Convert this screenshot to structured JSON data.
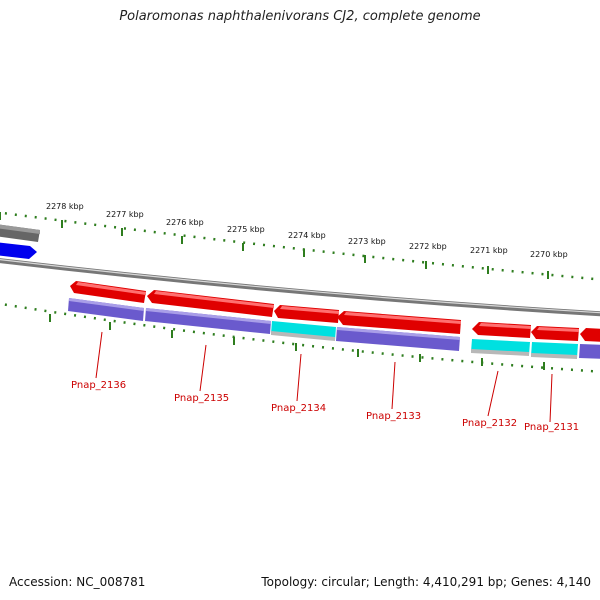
{
  "title": "Polaromonas naphthalenivorans CJ2, complete genome",
  "footer": {
    "accession": "Accession: NC_008781",
    "summary": "Topology: circular; Length: 4,410,291 bp; Genes: 4,140"
  },
  "scale_labels": [
    "2278 kbp",
    "2277 kbp",
    "2276 kbp",
    "2275 kbp",
    "2274 kbp",
    "2273 kbp",
    "2272 kbp",
    "2271 kbp",
    "2270 kbp"
  ],
  "genes": [
    "Pnap_2136",
    "Pnap_2135",
    "Pnap_2134",
    "Pnap_2133",
    "Pnap_2132",
    "Pnap_2131"
  ],
  "colors": {
    "gene_red": "#e00000",
    "protein_purple": "#6a5acd",
    "rna_cyan": "#00e0e0",
    "blue_feature": "#0000ee",
    "backbone_gray": "#888888",
    "tick_green": "#2e7d1e",
    "label_red": "#cc0000"
  }
}
